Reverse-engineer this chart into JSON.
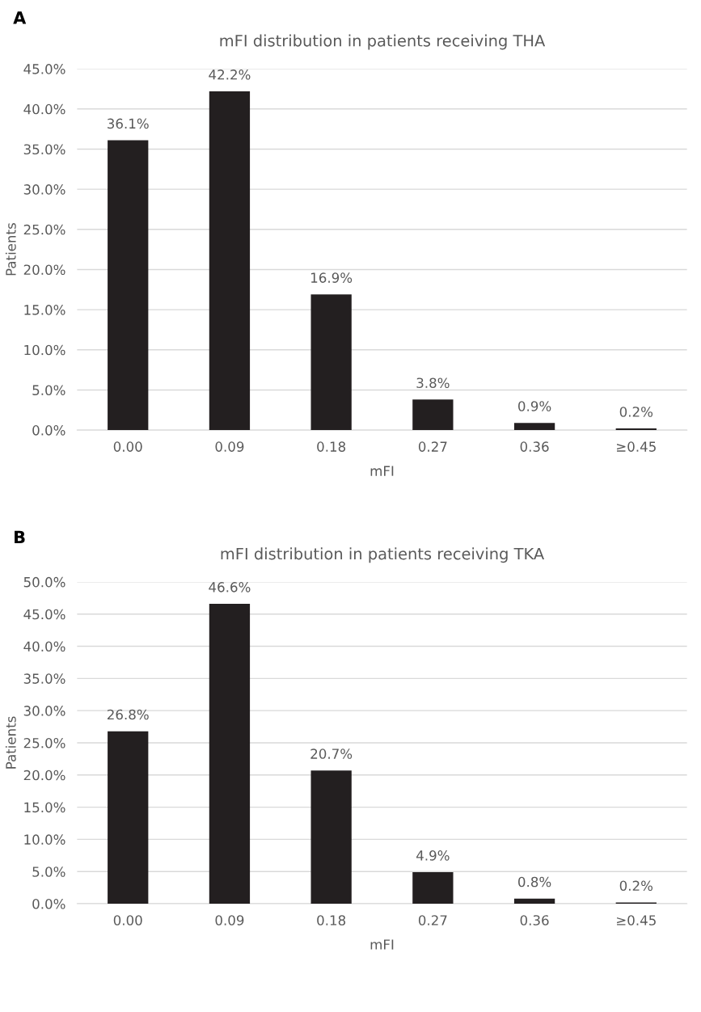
{
  "chart_data": [
    {
      "type": "bar",
      "title": "mFI distribution in patients receiving THA",
      "xlabel": "mFI",
      "ylabel": "Patients",
      "annotations": [
        "A"
      ],
      "categories": [
        "0.00",
        "0.09",
        "0.18",
        "0.27",
        "0.36",
        "≥0.45"
      ],
      "values": [
        36.1,
        42.2,
        16.9,
        3.8,
        0.9,
        0.2
      ],
      "value_labels": [
        "36.1%",
        "42.2%",
        "16.9%",
        "3.8%",
        "0.9%",
        "0.2%"
      ],
      "color": "#231f20",
      "ylim": [
        0,
        45
      ],
      "yticks": [
        {
          "value": 0,
          "label": "0.0%"
        },
        {
          "value": 5,
          "label": "5.0%"
        },
        {
          "value": 10,
          "label": "10.0%"
        },
        {
          "value": 15,
          "label": "15.0%"
        },
        {
          "value": 20,
          "label": "20.0%"
        },
        {
          "value": 25,
          "label": "25.0%"
        },
        {
          "value": 30,
          "label": "30.0%"
        },
        {
          "value": 35,
          "label": "35.0%"
        },
        {
          "value": 40,
          "label": "40.0%"
        },
        {
          "value": 45,
          "label": "45.0%"
        }
      ],
      "grid": "y",
      "legend": false
    },
    {
      "type": "bar",
      "title": "mFI distribution in patients receiving TKA",
      "xlabel": "mFI",
      "ylabel": "Patients",
      "annotations": [
        "B"
      ],
      "categories": [
        "0.00",
        "0.09",
        "0.18",
        "0.27",
        "0.36",
        "≥0.45"
      ],
      "values": [
        26.8,
        46.6,
        20.7,
        4.9,
        0.8,
        0.2
      ],
      "value_labels": [
        "26.8%",
        "46.6%",
        "20.7%",
        "4.9%",
        "0.8%",
        "0.2%"
      ],
      "color": "#231f20",
      "ylim": [
        0,
        50
      ],
      "yticks": [
        {
          "value": 0,
          "label": "0.0%"
        },
        {
          "value": 5,
          "label": "5.0%"
        },
        {
          "value": 10,
          "label": "10.0%"
        },
        {
          "value": 15,
          "label": "15.0%"
        },
        {
          "value": 20,
          "label": "20.0%"
        },
        {
          "value": 25,
          "label": "25.0%"
        },
        {
          "value": 30,
          "label": "30.0%"
        },
        {
          "value": 35,
          "label": "35.0%"
        },
        {
          "value": 40,
          "label": "40.0%"
        },
        {
          "value": 45,
          "label": "45.0%"
        },
        {
          "value": 50,
          "label": "50.0%"
        }
      ],
      "grid": "y",
      "legend": false
    }
  ]
}
